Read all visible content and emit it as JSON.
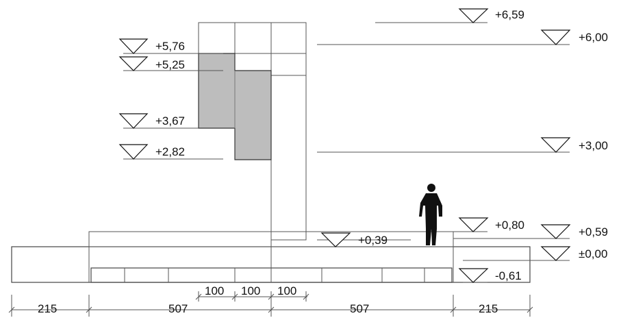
{
  "levels": [
    {
      "id": "l659",
      "text": "+6,59"
    },
    {
      "id": "l600",
      "text": "+6,00"
    },
    {
      "id": "l576",
      "text": "+5,76"
    },
    {
      "id": "l525",
      "text": "+5,25"
    },
    {
      "id": "l367",
      "text": "+3,67"
    },
    {
      "id": "l282",
      "text": "+2,82"
    },
    {
      "id": "l300",
      "text": "+3,00"
    },
    {
      "id": "l080",
      "text": "+0,80"
    },
    {
      "id": "l059",
      "text": "+0,59"
    },
    {
      "id": "l039",
      "text": "+0,39"
    },
    {
      "id": "l000",
      "text": "±0,00"
    },
    {
      "id": "lm061",
      "text": "-0,61"
    }
  ],
  "dimensions": {
    "bottom": [
      "215",
      "507",
      "507",
      "215"
    ],
    "middle": [
      "100",
      "100",
      "100"
    ]
  },
  "colors": {
    "line": "#555555",
    "fill_gray": "#bdbdbd",
    "text": "#111111"
  }
}
